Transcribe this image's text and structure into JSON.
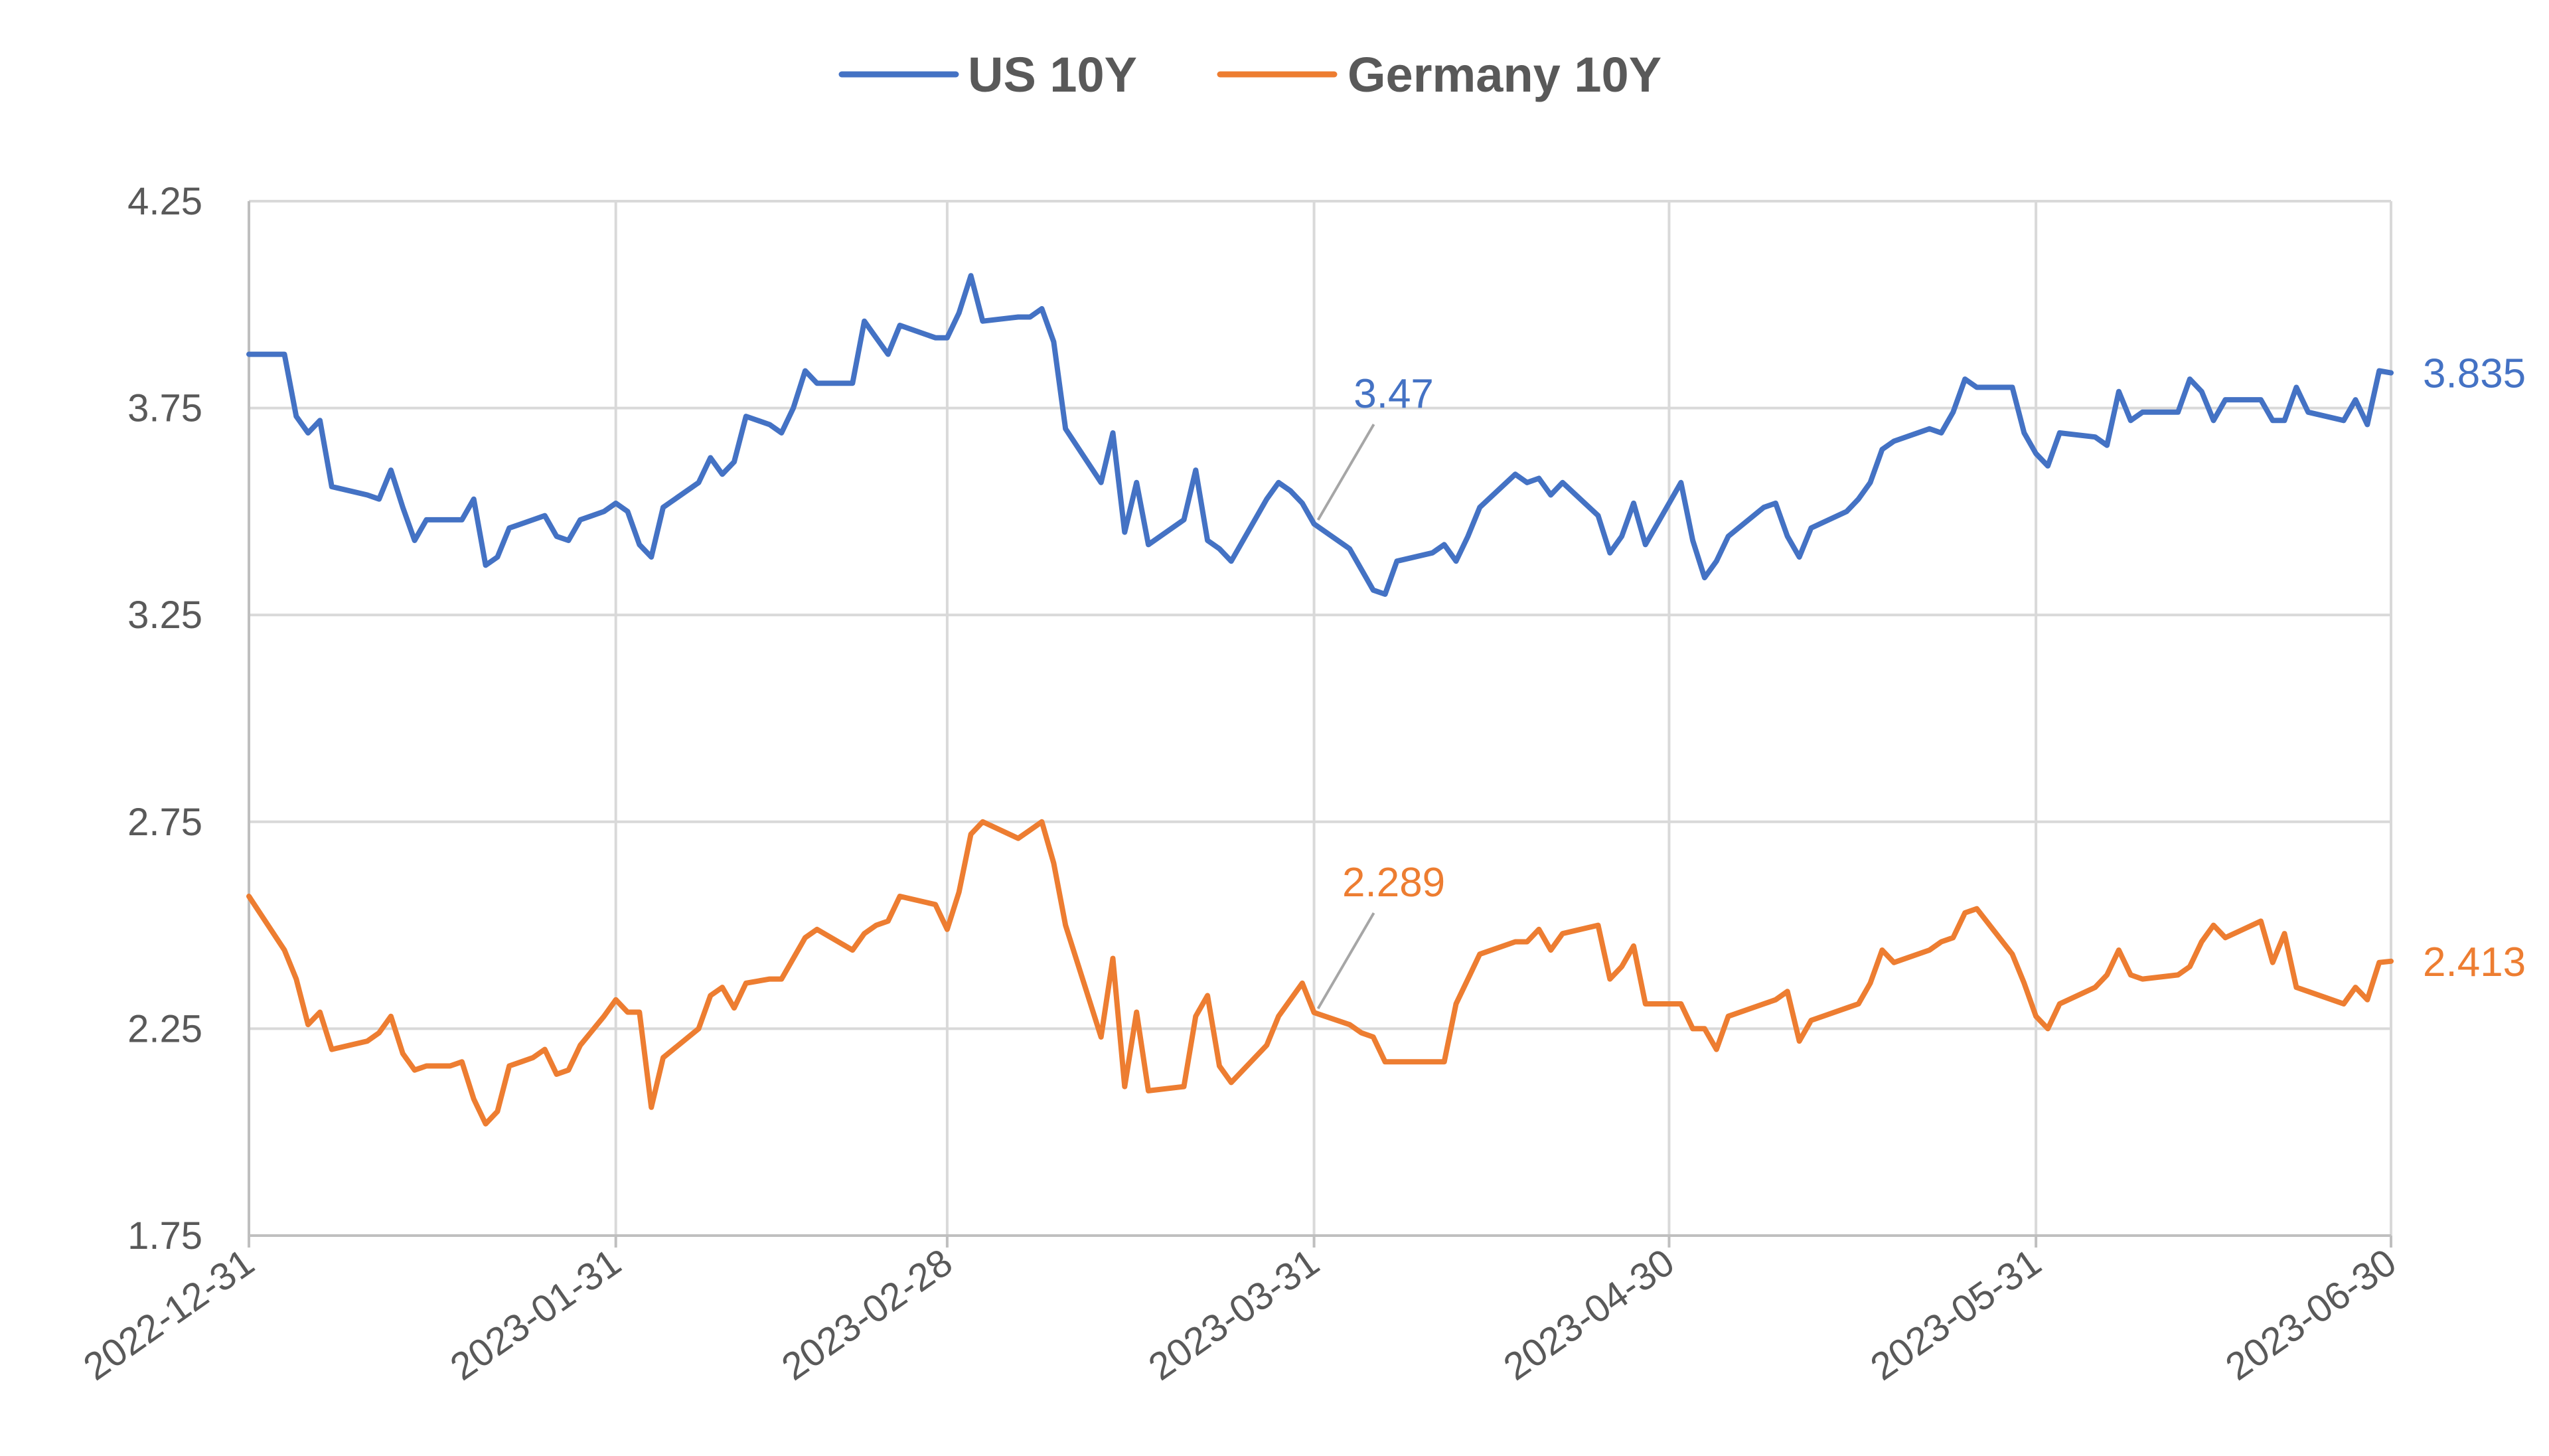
{
  "chart_data": {
    "type": "line",
    "title": "",
    "xlabel": "",
    "ylabel": "",
    "x_start": "2022-12-31",
    "x_end": "2023-06-30",
    "ylim": [
      1.75,
      4.25
    ],
    "yticks": [
      "4.25",
      "3.75",
      "3.25",
      "2.75",
      "2.25",
      "1.75"
    ],
    "yticks_values": [
      4.25,
      3.75,
      3.25,
      2.75,
      2.25,
      1.75
    ],
    "xticks": [
      "2022-12-31",
      "2023-01-31",
      "2023-02-28",
      "2023-03-31",
      "2023-04-30",
      "2023-05-31",
      "2023-06-30"
    ],
    "grid": true,
    "legend_position": "top-center",
    "series": [
      {
        "name": "US 10Y",
        "color": "#4472c4",
        "points": [
          [
            "2022-12-31",
            3.88
          ],
          [
            "2023-01-03",
            3.88
          ],
          [
            "2023-01-04",
            3.73
          ],
          [
            "2023-01-05",
            3.69
          ],
          [
            "2023-01-06",
            3.72
          ],
          [
            "2023-01-07",
            3.56
          ],
          [
            "2023-01-10",
            3.54
          ],
          [
            "2023-01-11",
            3.53
          ],
          [
            "2023-01-12",
            3.6
          ],
          [
            "2023-01-13",
            3.51
          ],
          [
            "2023-01-14",
            3.43
          ],
          [
            "2023-01-15",
            3.48
          ],
          [
            "2023-01-17",
            3.48
          ],
          [
            "2023-01-18",
            3.48
          ],
          [
            "2023-01-19",
            3.53
          ],
          [
            "2023-01-20",
            3.37
          ],
          [
            "2023-01-21",
            3.39
          ],
          [
            "2023-01-22",
            3.46
          ],
          [
            "2023-01-23",
            3.47
          ],
          [
            "2023-01-24",
            3.48
          ],
          [
            "2023-01-25",
            3.49
          ],
          [
            "2023-01-26",
            3.44
          ],
          [
            "2023-01-27",
            3.43
          ],
          [
            "2023-01-28",
            3.48
          ],
          [
            "2023-01-30",
            3.5
          ],
          [
            "2023-01-31",
            3.52
          ],
          [
            "2023-02-01",
            3.5
          ],
          [
            "2023-02-02",
            3.42
          ],
          [
            "2023-02-03",
            3.39
          ],
          [
            "2023-02-04",
            3.51
          ],
          [
            "2023-02-07",
            3.57
          ],
          [
            "2023-02-08",
            3.63
          ],
          [
            "2023-02-09",
            3.59
          ],
          [
            "2023-02-10",
            3.62
          ],
          [
            "2023-02-11",
            3.73
          ],
          [
            "2023-02-13",
            3.71
          ],
          [
            "2023-02-14",
            3.69
          ],
          [
            "2023-02-15",
            3.75
          ],
          [
            "2023-02-16",
            3.84
          ],
          [
            "2023-02-17",
            3.81
          ],
          [
            "2023-02-20",
            3.81
          ],
          [
            "2023-02-21",
            3.96
          ],
          [
            "2023-02-22",
            3.92
          ],
          [
            "2023-02-23",
            3.88
          ],
          [
            "2023-02-24",
            3.95
          ],
          [
            "2023-02-27",
            3.92
          ],
          [
            "2023-02-28",
            3.92
          ],
          [
            "2023-03-01",
            3.98
          ],
          [
            "2023-03-02",
            4.07
          ],
          [
            "2023-03-03",
            3.96
          ],
          [
            "2023-03-06",
            3.97
          ],
          [
            "2023-03-07",
            3.97
          ],
          [
            "2023-03-08",
            3.99
          ],
          [
            "2023-03-09",
            3.91
          ],
          [
            "2023-03-10",
            3.7
          ],
          [
            "2023-03-13",
            3.57
          ],
          [
            "2023-03-14",
            3.69
          ],
          [
            "2023-03-15",
            3.45
          ],
          [
            "2023-03-16",
            3.57
          ],
          [
            "2023-03-17",
            3.42
          ],
          [
            "2023-03-20",
            3.48
          ],
          [
            "2023-03-21",
            3.6
          ],
          [
            "2023-03-22",
            3.43
          ],
          [
            "2023-03-23",
            3.41
          ],
          [
            "2023-03-24",
            3.38
          ],
          [
            "2023-03-27",
            3.53
          ],
          [
            "2023-03-28",
            3.57
          ],
          [
            "2023-03-29",
            3.55
          ],
          [
            "2023-03-30",
            3.52
          ],
          [
            "2023-03-31",
            3.47
          ],
          [
            "2023-04-03",
            3.41
          ],
          [
            "2023-04-04",
            3.36
          ],
          [
            "2023-04-05",
            3.31
          ],
          [
            "2023-04-06",
            3.3
          ],
          [
            "2023-04-07",
            3.38
          ],
          [
            "2023-04-10",
            3.4
          ],
          [
            "2023-04-11",
            3.42
          ],
          [
            "2023-04-12",
            3.38
          ],
          [
            "2023-04-13",
            3.44
          ],
          [
            "2023-04-14",
            3.51
          ],
          [
            "2023-04-17",
            3.59
          ],
          [
            "2023-04-18",
            3.57
          ],
          [
            "2023-04-19",
            3.58
          ],
          [
            "2023-04-20",
            3.54
          ],
          [
            "2023-04-21",
            3.57
          ],
          [
            "2023-04-24",
            3.49
          ],
          [
            "2023-04-25",
            3.4
          ],
          [
            "2023-04-26",
            3.44
          ],
          [
            "2023-04-27",
            3.52
          ],
          [
            "2023-04-28",
            3.42
          ],
          [
            "2023-05-01",
            3.57
          ],
          [
            "2023-05-02",
            3.43
          ],
          [
            "2023-05-03",
            3.34
          ],
          [
            "2023-05-04",
            3.38
          ],
          [
            "2023-05-05",
            3.44
          ],
          [
            "2023-05-08",
            3.51
          ],
          [
            "2023-05-09",
            3.52
          ],
          [
            "2023-05-10",
            3.44
          ],
          [
            "2023-05-11",
            3.39
          ],
          [
            "2023-05-12",
            3.46
          ],
          [
            "2023-05-15",
            3.5
          ],
          [
            "2023-05-16",
            3.53
          ],
          [
            "2023-05-17",
            3.57
          ],
          [
            "2023-05-18",
            3.65
          ],
          [
            "2023-05-19",
            3.67
          ],
          [
            "2023-05-22",
            3.7
          ],
          [
            "2023-05-23",
            3.69
          ],
          [
            "2023-05-24",
            3.74
          ],
          [
            "2023-05-25",
            3.82
          ],
          [
            "2023-05-26",
            3.8
          ],
          [
            "2023-05-29",
            3.8
          ],
          [
            "2023-05-30",
            3.69
          ],
          [
            "2023-05-31",
            3.64
          ],
          [
            "2023-06-01",
            3.61
          ],
          [
            "2023-06-02",
            3.69
          ],
          [
            "2023-06-05",
            3.68
          ],
          [
            "2023-06-06",
            3.66
          ],
          [
            "2023-06-07",
            3.79
          ],
          [
            "2023-06-08",
            3.72
          ],
          [
            "2023-06-09",
            3.74
          ],
          [
            "2023-06-12",
            3.74
          ],
          [
            "2023-06-13",
            3.82
          ],
          [
            "2023-06-14",
            3.79
          ],
          [
            "2023-06-15",
            3.72
          ],
          [
            "2023-06-16",
            3.77
          ],
          [
            "2023-06-19",
            3.77
          ],
          [
            "2023-06-20",
            3.72
          ],
          [
            "2023-06-21",
            3.72
          ],
          [
            "2023-06-22",
            3.8
          ],
          [
            "2023-06-23",
            3.74
          ],
          [
            "2023-06-26",
            3.72
          ],
          [
            "2023-06-27",
            3.77
          ],
          [
            "2023-06-28",
            3.71
          ],
          [
            "2023-06-29",
            3.84
          ],
          [
            "2023-06-30",
            3.835
          ]
        ]
      },
      {
        "name": "Germany 10Y",
        "color": "#ed7d31",
        "points": [
          [
            "2022-12-31",
            2.57
          ],
          [
            "2023-01-03",
            2.44
          ],
          [
            "2023-01-04",
            2.37
          ],
          [
            "2023-01-05",
            2.26
          ],
          [
            "2023-01-06",
            2.29
          ],
          [
            "2023-01-07",
            2.2
          ],
          [
            "2023-01-10",
            2.22
          ],
          [
            "2023-01-11",
            2.24
          ],
          [
            "2023-01-12",
            2.28
          ],
          [
            "2023-01-13",
            2.19
          ],
          [
            "2023-01-14",
            2.15
          ],
          [
            "2023-01-15",
            2.16
          ],
          [
            "2023-01-17",
            2.16
          ],
          [
            "2023-01-18",
            2.17
          ],
          [
            "2023-01-19",
            2.08
          ],
          [
            "2023-01-20",
            2.02
          ],
          [
            "2023-01-21",
            2.05
          ],
          [
            "2023-01-22",
            2.16
          ],
          [
            "2023-01-23",
            2.17
          ],
          [
            "2023-01-24",
            2.18
          ],
          [
            "2023-01-25",
            2.2
          ],
          [
            "2023-01-26",
            2.14
          ],
          [
            "2023-01-27",
            2.15
          ],
          [
            "2023-01-28",
            2.21
          ],
          [
            "2023-01-30",
            2.28
          ],
          [
            "2023-01-31",
            2.32
          ],
          [
            "2023-02-01",
            2.29
          ],
          [
            "2023-02-02",
            2.29
          ],
          [
            "2023-02-03",
            2.06
          ],
          [
            "2023-02-04",
            2.18
          ],
          [
            "2023-02-07",
            2.25
          ],
          [
            "2023-02-08",
            2.33
          ],
          [
            "2023-02-09",
            2.35
          ],
          [
            "2023-02-10",
            2.3
          ],
          [
            "2023-02-11",
            2.36
          ],
          [
            "2023-02-13",
            2.37
          ],
          [
            "2023-02-14",
            2.37
          ],
          [
            "2023-02-15",
            2.42
          ],
          [
            "2023-02-16",
            2.47
          ],
          [
            "2023-02-17",
            2.49
          ],
          [
            "2023-02-20",
            2.44
          ],
          [
            "2023-02-21",
            2.48
          ],
          [
            "2023-02-22",
            2.5
          ],
          [
            "2023-02-23",
            2.51
          ],
          [
            "2023-02-24",
            2.57
          ],
          [
            "2023-02-27",
            2.55
          ],
          [
            "2023-02-28",
            2.49
          ],
          [
            "2023-03-01",
            2.58
          ],
          [
            "2023-03-02",
            2.72
          ],
          [
            "2023-03-03",
            2.75
          ],
          [
            "2023-03-06",
            2.71
          ],
          [
            "2023-03-07",
            2.73
          ],
          [
            "2023-03-08",
            2.75
          ],
          [
            "2023-03-09",
            2.65
          ],
          [
            "2023-03-10",
            2.5
          ],
          [
            "2023-03-13",
            2.23
          ],
          [
            "2023-03-14",
            2.42
          ],
          [
            "2023-03-15",
            2.11
          ],
          [
            "2023-03-16",
            2.29
          ],
          [
            "2023-03-17",
            2.1
          ],
          [
            "2023-03-20",
            2.11
          ],
          [
            "2023-03-21",
            2.28
          ],
          [
            "2023-03-22",
            2.33
          ],
          [
            "2023-03-23",
            2.16
          ],
          [
            "2023-03-24",
            2.12
          ],
          [
            "2023-03-27",
            2.21
          ],
          [
            "2023-03-28",
            2.28
          ],
          [
            "2023-03-29",
            2.32
          ],
          [
            "2023-03-30",
            2.36
          ],
          [
            "2023-03-31",
            2.289
          ],
          [
            "2023-04-03",
            2.26
          ],
          [
            "2023-04-04",
            2.24
          ],
          [
            "2023-04-05",
            2.23
          ],
          [
            "2023-04-06",
            2.17
          ],
          [
            "2023-04-07",
            2.17
          ],
          [
            "2023-04-10",
            2.17
          ],
          [
            "2023-04-11",
            2.17
          ],
          [
            "2023-04-12",
            2.31
          ],
          [
            "2023-04-13",
            2.37
          ],
          [
            "2023-04-14",
            2.43
          ],
          [
            "2023-04-17",
            2.46
          ],
          [
            "2023-04-18",
            2.46
          ],
          [
            "2023-04-19",
            2.49
          ],
          [
            "2023-04-20",
            2.44
          ],
          [
            "2023-04-21",
            2.48
          ],
          [
            "2023-04-24",
            2.5
          ],
          [
            "2023-04-25",
            2.37
          ],
          [
            "2023-04-26",
            2.4
          ],
          [
            "2023-04-27",
            2.45
          ],
          [
            "2023-04-28",
            2.31
          ],
          [
            "2023-05-01",
            2.31
          ],
          [
            "2023-05-02",
            2.25
          ],
          [
            "2023-05-03",
            2.25
          ],
          [
            "2023-05-04",
            2.2
          ],
          [
            "2023-05-05",
            2.28
          ],
          [
            "2023-05-08",
            2.31
          ],
          [
            "2023-05-09",
            2.32
          ],
          [
            "2023-05-10",
            2.34
          ],
          [
            "2023-05-11",
            2.22
          ],
          [
            "2023-05-12",
            2.27
          ],
          [
            "2023-05-15",
            2.3
          ],
          [
            "2023-05-16",
            2.31
          ],
          [
            "2023-05-17",
            2.36
          ],
          [
            "2023-05-18",
            2.44
          ],
          [
            "2023-05-19",
            2.41
          ],
          [
            "2023-05-22",
            2.44
          ],
          [
            "2023-05-23",
            2.46
          ],
          [
            "2023-05-24",
            2.47
          ],
          [
            "2023-05-25",
            2.53
          ],
          [
            "2023-05-26",
            2.54
          ],
          [
            "2023-05-29",
            2.43
          ],
          [
            "2023-05-30",
            2.36
          ],
          [
            "2023-05-31",
            2.28
          ],
          [
            "2023-06-01",
            2.25
          ],
          [
            "2023-06-02",
            2.31
          ],
          [
            "2023-06-05",
            2.35
          ],
          [
            "2023-06-06",
            2.38
          ],
          [
            "2023-06-07",
            2.44
          ],
          [
            "2023-06-08",
            2.38
          ],
          [
            "2023-06-09",
            2.37
          ],
          [
            "2023-06-12",
            2.38
          ],
          [
            "2023-06-13",
            2.4
          ],
          [
            "2023-06-14",
            2.46
          ],
          [
            "2023-06-15",
            2.5
          ],
          [
            "2023-06-16",
            2.47
          ],
          [
            "2023-06-19",
            2.51
          ],
          [
            "2023-06-20",
            2.41
          ],
          [
            "2023-06-21",
            2.48
          ],
          [
            "2023-06-22",
            2.35
          ],
          [
            "2023-06-23",
            2.34
          ],
          [
            "2023-06-26",
            2.31
          ],
          [
            "2023-06-27",
            2.35
          ],
          [
            "2023-06-28",
            2.32
          ],
          [
            "2023-06-29",
            2.41
          ],
          [
            "2023-06-30",
            2.413
          ]
        ]
      }
    ],
    "annotations": [
      {
        "series": "US 10Y",
        "x": "2023-03-31",
        "y": 3.47,
        "text": "3.47",
        "style": "callout"
      },
      {
        "series": "US 10Y",
        "x": "2023-06-30",
        "y": 3.835,
        "text": "3.835",
        "style": "end-label"
      },
      {
        "series": "Germany 10Y",
        "x": "2023-03-31",
        "y": 2.289,
        "text": "2.289",
        "style": "callout"
      },
      {
        "series": "Germany 10Y",
        "x": "2023-06-30",
        "y": 2.413,
        "text": "2.413",
        "style": "end-label"
      }
    ]
  }
}
